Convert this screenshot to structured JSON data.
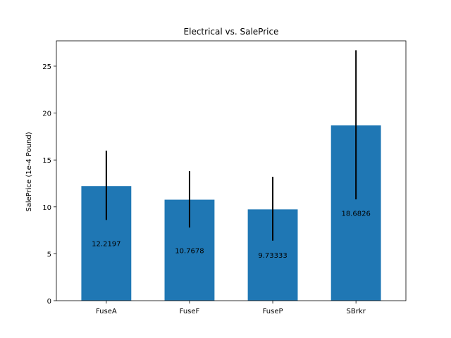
{
  "chart_data": {
    "type": "bar",
    "title": "Electrical vs. SalePrice",
    "xlabel": "",
    "ylabel": "SalePrice (1e-4 Pound)",
    "categories": [
      "FuseA",
      "FuseF",
      "FuseP",
      "SBrkr"
    ],
    "values": [
      12.2197,
      10.7678,
      9.73333,
      18.6826
    ],
    "value_labels": [
      "12.2197",
      "10.7678",
      "9.73333",
      "18.6826"
    ],
    "error_low": [
      8.6,
      7.8,
      6.4,
      10.8
    ],
    "error_high": [
      16.0,
      13.8,
      13.2,
      26.7
    ],
    "ylim": [
      0,
      27.7
    ],
    "yticks": [
      0,
      5,
      10,
      15,
      20,
      25
    ],
    "ytick_labels": [
      "0",
      "5",
      "10",
      "15",
      "20",
      "25"
    ],
    "grid": false,
    "colors": {
      "bar": "#1f77b4",
      "error_bar": "#000000"
    }
  }
}
